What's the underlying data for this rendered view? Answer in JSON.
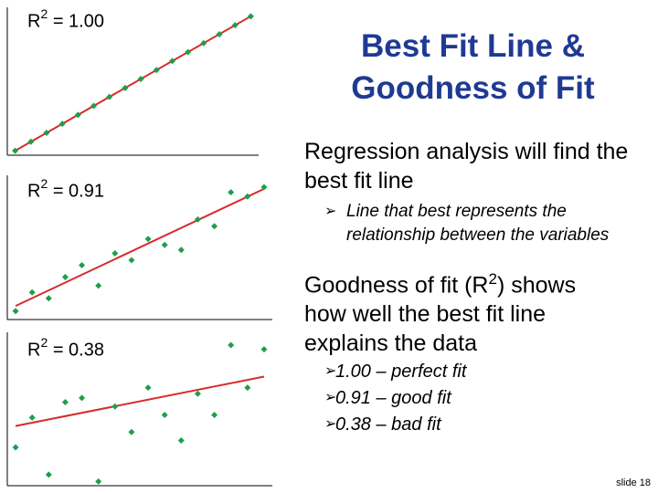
{
  "title": "Best Fit Line & Goodness of Fit",
  "paragraph1": "Regression analysis will find the best fit line",
  "sub_bullet": "Line that best represents the relationship between the variables",
  "paragraph2_pre": "Goodness of fit (R",
  "paragraph2_sup": "2",
  "paragraph2_post": ") shows how well the best fit line explains the data",
  "fit_bullets": [
    "1.00 – perfect fit",
    "0.91 – good fit",
    "0.38 – bad fit"
  ],
  "slide_number": "slide 18",
  "colors": {
    "title": "#1f3a93",
    "line": "#d62b2b",
    "points": "#1f9e4a"
  },
  "chart_data": [
    {
      "type": "scatter",
      "annotation": {
        "label": "R",
        "sup": "2",
        "value": "= 1.00"
      },
      "x": [
        0,
        1,
        2,
        3,
        4,
        5,
        6,
        7,
        8,
        9,
        10,
        11,
        12,
        13,
        14,
        15
      ],
      "y": [
        0,
        1,
        2,
        3,
        4,
        5,
        6,
        7,
        8,
        9,
        10,
        11,
        12,
        13,
        14,
        15
      ],
      "fit": {
        "x0": 0,
        "y0": 0,
        "x1": 15,
        "y1": 15
      },
      "xlim": [
        -0.5,
        15.5
      ],
      "ylim": [
        -0.5,
        16
      ]
    },
    {
      "type": "scatter",
      "annotation": {
        "label": "R",
        "sup": "2",
        "value": "= 0.91"
      },
      "x": [
        0,
        1,
        2,
        3,
        4,
        5,
        6,
        7,
        8,
        9,
        10,
        11,
        12,
        13,
        14,
        15
      ],
      "y": [
        0,
        2.2,
        1.5,
        4.0,
        5.4,
        3.0,
        6.8,
        6.0,
        8.5,
        7.8,
        7.2,
        10.8,
        10.0,
        14.0,
        13.5,
        14.6
      ],
      "fit": {
        "x0": 0,
        "y0": 0.6,
        "x1": 15,
        "y1": 14.4
      },
      "xlim": [
        -0.5,
        15.5
      ],
      "ylim": [
        -1,
        16
      ]
    },
    {
      "type": "scatter",
      "annotation": {
        "label": "R",
        "sup": "2",
        "value": "= 0.38"
      },
      "x": [
        0,
        1,
        2,
        3,
        4,
        5,
        6,
        7,
        8,
        9,
        10,
        11,
        12,
        13,
        14,
        15
      ],
      "y": [
        3.5,
        7.0,
        0.3,
        8.8,
        9.3,
        -0.5,
        8.3,
        5.3,
        10.5,
        7.3,
        4.3,
        9.8,
        7.3,
        15.5,
        10.5,
        15.0
      ],
      "fit": {
        "x0": 0,
        "y0": 6.0,
        "x1": 15,
        "y1": 11.8
      },
      "xlim": [
        -0.5,
        15.5
      ],
      "ylim": [
        -1,
        17
      ]
    }
  ]
}
